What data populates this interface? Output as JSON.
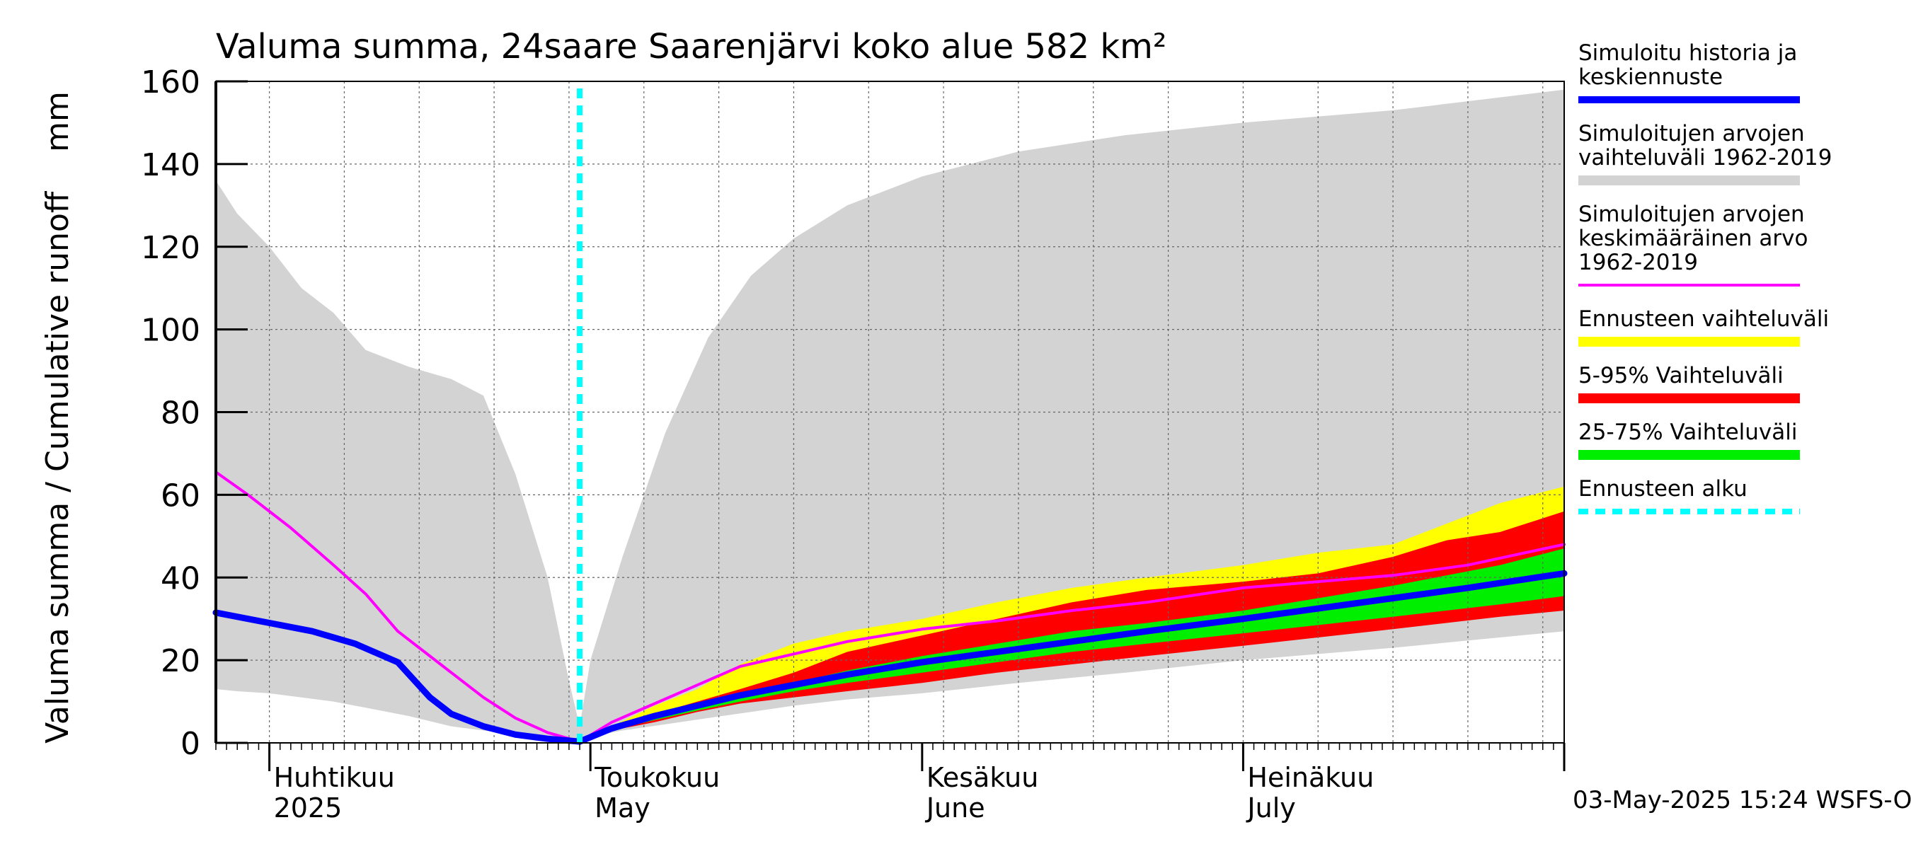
{
  "chart_data": {
    "type": "area",
    "title": "Valuma summa, 24saare Saarenjärvi koko alue 582 km²",
    "ylabel": "Valuma summa / Cumulative runoff    mm",
    "ylim": [
      0,
      160
    ],
    "yticks": [
      0,
      20,
      40,
      60,
      80,
      100,
      120,
      140,
      160
    ],
    "xlim": [
      "2025-03-27",
      "2025-07-31"
    ],
    "grid": true,
    "legend_position": "right",
    "month_labels": [
      {
        "date": "2025-04-01",
        "fi": "Huhtikuu",
        "en": "2025"
      },
      {
        "date": "2025-05-01",
        "fi": "Toukokuu",
        "en": "May"
      },
      {
        "date": "2025-06-01",
        "fi": "Kesäkuu",
        "en": "June"
      },
      {
        "date": "2025-07-01",
        "fi": "Heinäkuu",
        "en": "July"
      }
    ],
    "forecast_start": "2025-04-30",
    "timestamp": "03-May-2025 15:24 WSFS-O",
    "colors": {
      "history_range": "#d3d3d3",
      "forecast_range": "#ffff00",
      "p5_95": "#ff0000",
      "p25_75": "#00ee00",
      "mean": "#ff00ff",
      "median": "#0000ff",
      "forecast_start": "#00ffff"
    },
    "legend": [
      {
        "label": "Simuloitu historia ja\nkeskiennuste",
        "color": "#0000ff",
        "style": "line"
      },
      {
        "label": "Simuloitujen arvojen\nvaihteluväli 1962-2019",
        "color": "#d3d3d3",
        "style": "band"
      },
      {
        "label": "Simuloitujen arvojen\nkeskimääräinen arvo\n   1962-2019",
        "color": "#ff00ff",
        "style": "thin"
      },
      {
        "label": "Ennusteen vaihteluväli",
        "color": "#ffff00",
        "style": "band"
      },
      {
        "label": "5-95% Vaihteluväli",
        "color": "#ff0000",
        "style": "band"
      },
      {
        "label": "25-75% Vaihteluväli",
        "color": "#00ee00",
        "style": "band"
      },
      {
        "label": "Ennusteen alku",
        "color": "#00ffff",
        "style": "dashed"
      }
    ],
    "series": [
      {
        "name": "Simuloitujen arvojen vaihteluväli 1962-2019",
        "kind": "band",
        "x": [
          "2025-03-27",
          "2025-03-29",
          "2025-04-01",
          "2025-04-04",
          "2025-04-07",
          "2025-04-10",
          "2025-04-14",
          "2025-04-18",
          "2025-04-21",
          "2025-04-24",
          "2025-04-27",
          "2025-04-29",
          "2025-04-30",
          "2025-05-01",
          "2025-05-04",
          "2025-05-08",
          "2025-05-12",
          "2025-05-16",
          "2025-05-20",
          "2025-05-25",
          "2025-06-01",
          "2025-06-10",
          "2025-06-20",
          "2025-07-01",
          "2025-07-15",
          "2025-07-31"
        ],
        "upper": [
          136,
          128,
          120,
          110,
          104,
          95,
          91,
          88,
          84,
          65,
          40,
          15,
          4,
          20,
          45,
          75,
          98,
          113,
          122,
          130,
          137,
          143,
          147,
          150,
          153,
          158
        ],
        "lower": [
          13,
          12.5,
          12,
          11,
          10,
          8.5,
          6.5,
          4,
          3,
          2,
          1.5,
          0.8,
          0.3,
          1.5,
          3,
          4.5,
          6,
          7.5,
          9,
          10.5,
          12,
          14.5,
          17,
          20,
          23,
          27
        ]
      },
      {
        "name": "Ennusteen vaihteluväli",
        "kind": "band",
        "x": [
          "2025-04-30",
          "2025-05-03",
          "2025-05-07",
          "2025-05-11",
          "2025-05-15",
          "2025-05-20",
          "2025-05-25",
          "2025-06-01",
          "2025-06-08",
          "2025-06-15",
          "2025-06-22",
          "2025-07-01",
          "2025-07-08",
          "2025-07-15",
          "2025-07-20",
          "2025-07-25",
          "2025-07-31"
        ],
        "upper": [
          0.3,
          4,
          9,
          13,
          19,
          24,
          27,
          30,
          34,
          37.5,
          40,
          43,
          46,
          48,
          53,
          58,
          62
        ],
        "lower": [
          0.3,
          3,
          6,
          8,
          10,
          11.5,
          13,
          15.5,
          18,
          20,
          22,
          24,
          26,
          28,
          29,
          31,
          33
        ]
      },
      {
        "name": "5-95% Vaihteluväli",
        "kind": "band",
        "x": [
          "2025-04-30",
          "2025-05-03",
          "2025-05-07",
          "2025-05-11",
          "2025-05-15",
          "2025-05-20",
          "2025-05-25",
          "2025-06-01",
          "2025-06-08",
          "2025-06-15",
          "2025-06-22",
          "2025-07-01",
          "2025-07-08",
          "2025-07-15",
          "2025-07-20",
          "2025-07-25",
          "2025-07-31"
        ],
        "upper": [
          0.3,
          3.8,
          7,
          10,
          13,
          17,
          22,
          26,
          30,
          34,
          37,
          39,
          41,
          45,
          49,
          51,
          56
        ],
        "lower": [
          0.3,
          3,
          5,
          7.5,
          9.5,
          11,
          12.5,
          14.5,
          17,
          19,
          21,
          23.5,
          25.5,
          27.5,
          29,
          30.5,
          32
        ]
      },
      {
        "name": "25-75% Vaihteluväli",
        "kind": "band",
        "x": [
          "2025-04-30",
          "2025-05-03",
          "2025-05-07",
          "2025-05-11",
          "2025-05-15",
          "2025-05-20",
          "2025-05-25",
          "2025-06-01",
          "2025-06-08",
          "2025-06-15",
          "2025-06-22",
          "2025-07-01",
          "2025-07-08",
          "2025-07-15",
          "2025-07-20",
          "2025-07-25",
          "2025-07-31"
        ],
        "upper": [
          0.3,
          3.4,
          6.2,
          8.8,
          11.5,
          14.5,
          17.5,
          21,
          24,
          27,
          29,
          32,
          35,
          38,
          40.5,
          43,
          47
        ],
        "lower": [
          0.3,
          3.1,
          5.5,
          7.8,
          10,
          12.5,
          14.5,
          17,
          19.5,
          22,
          24,
          26.5,
          28.5,
          30.5,
          32,
          33.5,
          35.5
        ]
      },
      {
        "name": "Simuloitujen arvojen keskimääräinen arvo 1962-2019",
        "kind": "line",
        "x": [
          "2025-03-27",
          "2025-03-30",
          "2025-04-03",
          "2025-04-07",
          "2025-04-10",
          "2025-04-13",
          "2025-04-17",
          "2025-04-21",
          "2025-04-24",
          "2025-04-27",
          "2025-04-30",
          "2025-05-03",
          "2025-05-07",
          "2025-05-11",
          "2025-05-15",
          "2025-05-20",
          "2025-05-25",
          "2025-06-01",
          "2025-06-08",
          "2025-06-15",
          "2025-06-22",
          "2025-07-01",
          "2025-07-08",
          "2025-07-15",
          "2025-07-22",
          "2025-07-31"
        ],
        "y": [
          65.5,
          60,
          52,
          43,
          36,
          27,
          19,
          11,
          6,
          2.5,
          0.3,
          5,
          9.5,
          14,
          18.5,
          21.5,
          24.5,
          27.5,
          29.5,
          32,
          34,
          37.5,
          39,
          40.5,
          43,
          48
        ]
      },
      {
        "name": "Simuloitu historia ja keskiennuste",
        "kind": "line",
        "x": [
          "2025-03-27",
          "2025-04-01",
          "2025-04-05",
          "2025-04-09",
          "2025-04-13",
          "2025-04-16",
          "2025-04-18",
          "2025-04-21",
          "2025-04-24",
          "2025-04-27",
          "2025-04-30",
          "2025-05-03",
          "2025-05-07",
          "2025-05-11",
          "2025-05-15",
          "2025-05-20",
          "2025-05-25",
          "2025-06-01",
          "2025-06-08",
          "2025-06-15",
          "2025-06-22",
          "2025-07-01",
          "2025-07-08",
          "2025-07-15",
          "2025-07-22",
          "2025-07-31"
        ],
        "y": [
          31.5,
          29,
          27,
          24,
          19.5,
          11,
          7,
          4,
          2,
          1,
          0.3,
          3.5,
          6.5,
          9,
          11.5,
          14,
          16.5,
          19.5,
          22,
          24.5,
          27,
          30,
          32.5,
          35,
          37.5,
          41
        ]
      }
    ]
  }
}
